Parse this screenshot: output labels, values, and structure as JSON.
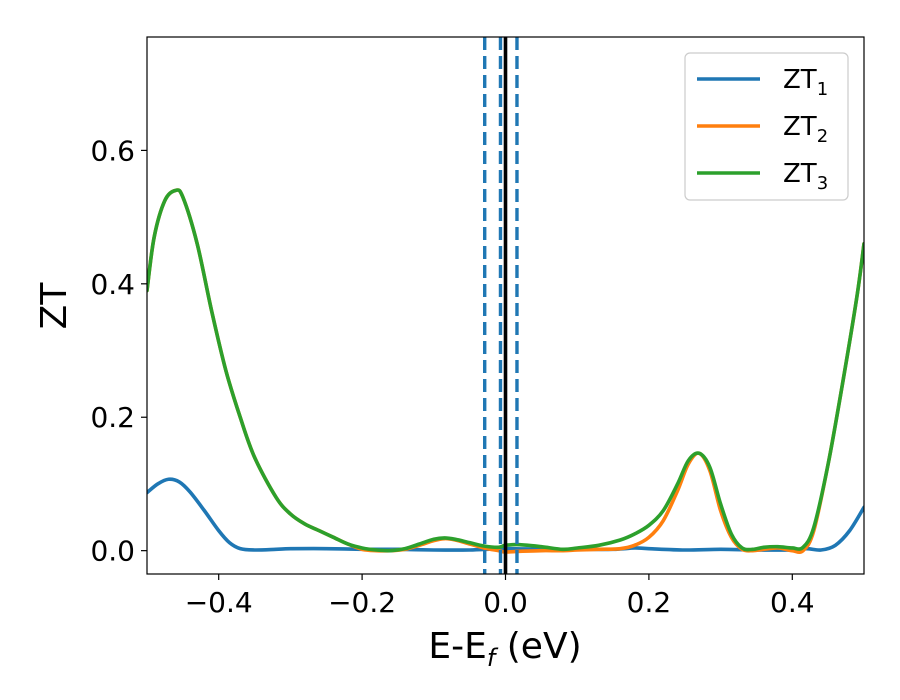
{
  "chart_data": {
    "type": "line",
    "xlabel": "E-E",
    "xlabel_sub": "f",
    "xlabel_unit": " (eV)",
    "ylabel": "ZT",
    "xlim": [
      -0.5,
      0.5
    ],
    "ylim": [
      -0.035,
      0.77
    ],
    "xticks": [
      -0.4,
      -0.2,
      0.0,
      0.2,
      0.4
    ],
    "xtick_labels": [
      "−0.4",
      "−0.2",
      "0.0",
      "0.2",
      "0.4"
    ],
    "yticks": [
      0.0,
      0.2,
      0.4,
      0.6
    ],
    "ytick_labels": [
      "0.0",
      "0.2",
      "0.4",
      "0.6"
    ],
    "grid": false,
    "legend_position": "top-right",
    "vertical_lines": [
      {
        "x": 0.0,
        "style": "solid",
        "color": "#000000"
      },
      {
        "x": -0.029,
        "style": "dashed",
        "color": "#1f77b4"
      },
      {
        "x": -0.007,
        "style": "dashed",
        "color": "#1f77b4"
      },
      {
        "x": 0.016,
        "style": "dashed",
        "color": "#1f77b4"
      }
    ],
    "series": [
      {
        "name": "ZT",
        "name_sub": "1",
        "color": "#1f77b4",
        "x": [
          -0.5,
          -0.485,
          -0.47,
          -0.455,
          -0.44,
          -0.42,
          -0.4,
          -0.385,
          -0.37,
          -0.35,
          -0.32,
          -0.3,
          -0.25,
          -0.2,
          -0.15,
          -0.1,
          -0.05,
          0.0,
          0.05,
          0.1,
          0.15,
          0.18,
          0.2,
          0.25,
          0.3,
          0.35,
          0.4,
          0.42,
          0.44,
          0.46,
          0.48,
          0.5
        ],
        "y": [
          0.087,
          0.1,
          0.107,
          0.103,
          0.088,
          0.06,
          0.03,
          0.012,
          0.003,
          0.001,
          0.002,
          0.003,
          0.003,
          0.002,
          0.002,
          0.001,
          0.001,
          0.003,
          0.002,
          0.002,
          0.002,
          0.004,
          0.003,
          0.001,
          0.002,
          0.001,
          0.001,
          0.003,
          0.001,
          0.008,
          0.03,
          0.065
        ]
      },
      {
        "name": "ZT",
        "name_sub": "2",
        "color": "#ff7f0e",
        "x": [
          -0.5,
          -0.49,
          -0.475,
          -0.46,
          -0.45,
          -0.43,
          -0.41,
          -0.39,
          -0.37,
          -0.35,
          -0.32,
          -0.3,
          -0.28,
          -0.26,
          -0.24,
          -0.22,
          -0.2,
          -0.18,
          -0.16,
          -0.14,
          -0.12,
          -0.1,
          -0.085,
          -0.07,
          -0.05,
          -0.03,
          -0.01,
          0.0,
          0.02,
          0.05,
          0.08,
          0.1,
          0.13,
          0.16,
          0.18,
          0.2,
          0.22,
          0.24,
          0.255,
          0.27,
          0.285,
          0.3,
          0.315,
          0.33,
          0.345,
          0.36,
          0.38,
          0.4,
          0.415,
          0.43,
          0.45,
          0.47,
          0.49,
          0.5
        ],
        "y": [
          0.39,
          0.47,
          0.525,
          0.54,
          0.53,
          0.46,
          0.36,
          0.27,
          0.2,
          0.14,
          0.08,
          0.055,
          0.04,
          0.03,
          0.02,
          0.01,
          0.002,
          0.0,
          0.0,
          0.002,
          0.008,
          0.015,
          0.018,
          0.016,
          0.01,
          0.004,
          0.0,
          -0.002,
          -0.001,
          0.0,
          0.0,
          0.001,
          0.002,
          0.003,
          0.008,
          0.02,
          0.045,
          0.09,
          0.13,
          0.146,
          0.12,
          0.06,
          0.02,
          0.002,
          0.0,
          0.002,
          0.004,
          0.0,
          0.0,
          0.03,
          0.13,
          0.25,
          0.38,
          0.46
        ]
      },
      {
        "name": "ZT",
        "name_sub": "3",
        "color": "#2ca02c",
        "x": [
          -0.5,
          -0.49,
          -0.475,
          -0.46,
          -0.45,
          -0.43,
          -0.41,
          -0.39,
          -0.37,
          -0.35,
          -0.32,
          -0.3,
          -0.28,
          -0.26,
          -0.24,
          -0.22,
          -0.2,
          -0.18,
          -0.16,
          -0.14,
          -0.12,
          -0.1,
          -0.085,
          -0.07,
          -0.05,
          -0.03,
          -0.01,
          0.0,
          0.02,
          0.05,
          0.08,
          0.1,
          0.13,
          0.16,
          0.18,
          0.2,
          0.22,
          0.24,
          0.255,
          0.27,
          0.285,
          0.3,
          0.315,
          0.33,
          0.345,
          0.36,
          0.38,
          0.4,
          0.415,
          0.43,
          0.45,
          0.47,
          0.49,
          0.5
        ],
        "y": [
          0.39,
          0.47,
          0.525,
          0.54,
          0.53,
          0.46,
          0.36,
          0.27,
          0.2,
          0.14,
          0.08,
          0.055,
          0.04,
          0.03,
          0.02,
          0.01,
          0.004,
          0.001,
          0.0,
          0.003,
          0.01,
          0.017,
          0.019,
          0.017,
          0.012,
          0.007,
          0.005,
          0.008,
          0.009,
          0.006,
          0.002,
          0.004,
          0.008,
          0.016,
          0.025,
          0.038,
          0.06,
          0.1,
          0.135,
          0.146,
          0.125,
          0.07,
          0.025,
          0.004,
          0.002,
          0.005,
          0.006,
          0.004,
          0.005,
          0.035,
          0.13,
          0.25,
          0.38,
          0.46
        ]
      }
    ]
  }
}
